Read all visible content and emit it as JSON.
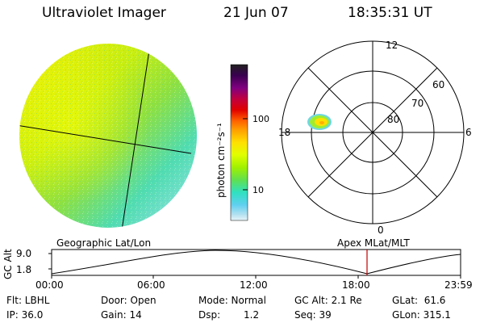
{
  "header": {
    "title": "Ultraviolet Imager",
    "date": "21 Jun 07",
    "time": "18:35:31 UT"
  },
  "colorbar": {
    "unit_label": "photon cm⁻²s⁻¹",
    "ticks": [
      "100",
      "10"
    ],
    "colors": [
      "#202020",
      "#3a0050",
      "#800080",
      "#c00040",
      "#e00000",
      "#ff6000",
      "#ffa000",
      "#ffe000",
      "#e0ff00",
      "#a0f000",
      "#60e050",
      "#30e0c0",
      "#60d0f0",
      "#b0e0f0",
      "#e8f4f8"
    ]
  },
  "polar_plot": {
    "mlt_labels": [
      "12",
      "18",
      "6",
      "0"
    ],
    "mlat_labels": [
      "60",
      "70",
      "80"
    ]
  },
  "altitude_panel": {
    "left_title": "Geographic Lat/Lon",
    "right_title": "Apex MLat/MLT",
    "ylabel": "GC Alt",
    "y_ticks": [
      "9.0",
      "1.8"
    ],
    "x_ticks": [
      "00:00",
      "06:00",
      "12:00",
      "18:00",
      "23:59"
    ],
    "marker_color": "#c00000"
  },
  "status": {
    "flt": "Flt: LBHL",
    "ip": "IP: 36.0",
    "door": "Door: Open",
    "gain": "Gain: 14",
    "mode": "Mode: Normal",
    "dsp_label": "Dsp:",
    "dsp_value": "1.2",
    "gc_alt": "GC Alt: 2.1 Re",
    "seq": "Seq: 39",
    "glat": "GLat:  61.6",
    "glon": "GLon: 315.1"
  }
}
